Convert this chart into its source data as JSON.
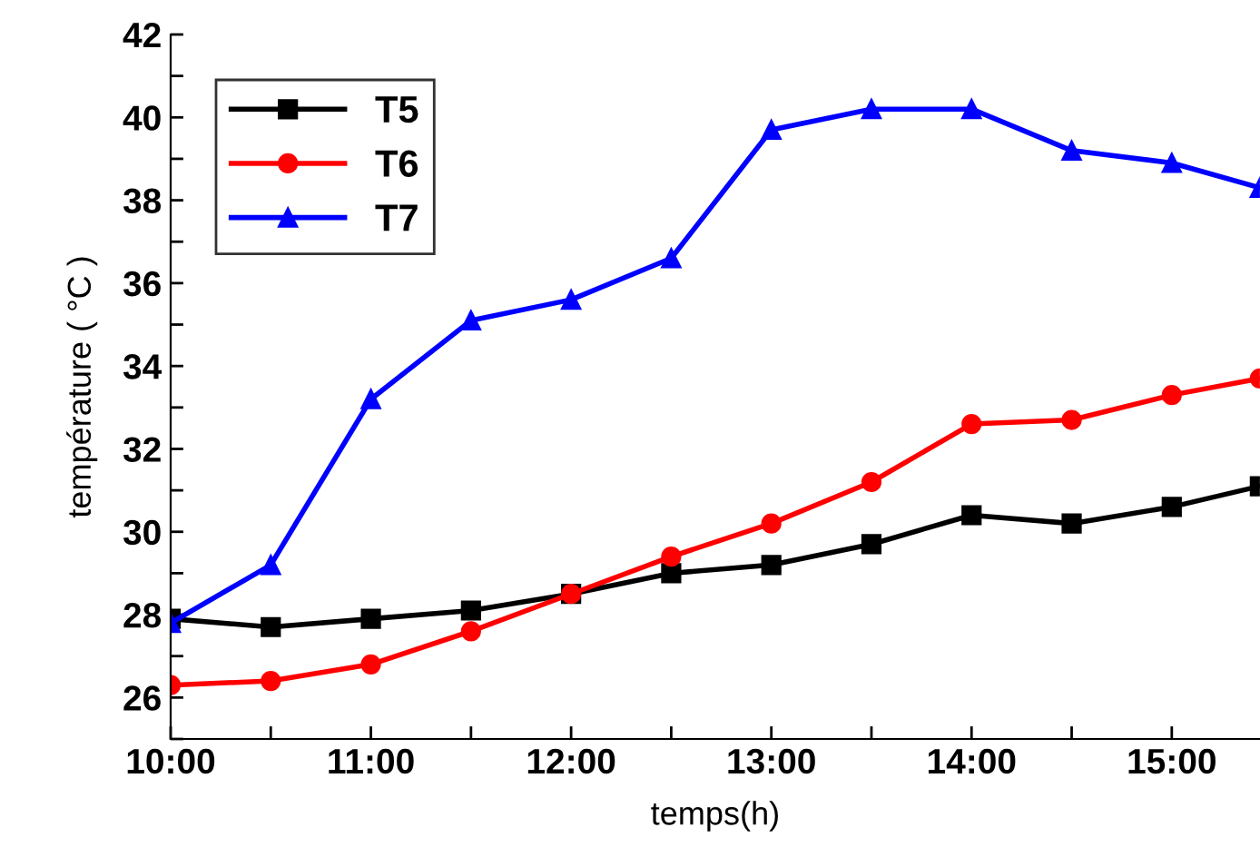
{
  "chart_data": {
    "type": "line",
    "xlabel": "temps(h)",
    "ylabel": "température ( °C )",
    "x": [
      10,
      10.5,
      11,
      11.5,
      12,
      12.5,
      13,
      13.5,
      14,
      14.5,
      15,
      15.44
    ],
    "series": [
      {
        "name": "T5",
        "color": "#000000",
        "marker": "square",
        "values": [
          27.9,
          27.7,
          27.9,
          28.1,
          28.5,
          29.0,
          29.2,
          29.7,
          30.4,
          30.2,
          30.6,
          31.1
        ]
      },
      {
        "name": "T6",
        "color": "#ff0000",
        "marker": "circle",
        "values": [
          26.3,
          26.4,
          26.8,
          27.6,
          28.5,
          29.4,
          30.2,
          31.2,
          32.6,
          32.7,
          33.3,
          33.7
        ]
      },
      {
        "name": "T7",
        "color": "#0000ff",
        "marker": "triangle",
        "values": [
          27.8,
          29.2,
          33.2,
          35.1,
          35.6,
          36.6,
          39.7,
          40.2,
          40.2,
          39.2,
          38.9,
          38.3
        ]
      }
    ],
    "xlim": [
      10,
      15.44
    ],
    "xticks": [
      {
        "value": 10,
        "label": "10:00"
      },
      {
        "value": 10.5,
        "label": null
      },
      {
        "value": 11,
        "label": "11:00"
      },
      {
        "value": 11.5,
        "label": null
      },
      {
        "value": 12,
        "label": "12:00"
      },
      {
        "value": 12.5,
        "label": null
      },
      {
        "value": 13,
        "label": "13:00"
      },
      {
        "value": 13.5,
        "label": null
      },
      {
        "value": 14,
        "label": "14:00"
      },
      {
        "value": 14.5,
        "label": null
      },
      {
        "value": 15,
        "label": "15:00"
      }
    ],
    "ylim": [
      25,
      42
    ],
    "yticks": [
      {
        "value": 25,
        "label": null
      },
      26,
      {
        "value": 27,
        "label": null
      },
      28,
      {
        "value": 29,
        "label": null
      },
      30,
      {
        "value": 31,
        "label": null
      },
      32,
      {
        "value": 33,
        "label": null
      },
      34,
      {
        "value": 35,
        "label": null
      },
      36,
      {
        "value": 37,
        "label": null
      },
      38,
      {
        "value": 39,
        "label": null
      },
      40,
      {
        "value": 41,
        "label": null
      },
      42
    ],
    "grid": false,
    "legend": "top left",
    "line_style": "solid"
  }
}
